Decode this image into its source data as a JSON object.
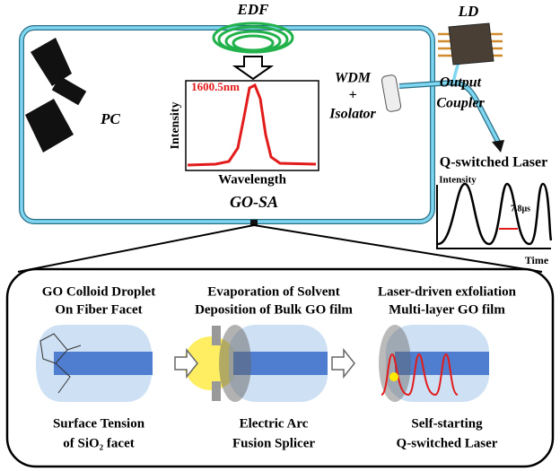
{
  "setup": {
    "edf": "EDF",
    "ld": "LD",
    "pc": "PC",
    "wdm": [
      "WDM",
      "+",
      "Isolator"
    ],
    "output_coupler": [
      "Output",
      "Coupler"
    ],
    "go_sa": "GO-SA"
  },
  "spectrum_inset": {
    "peak_label": "1600.5nm",
    "y_label": "Intensity",
    "x_label": "Wavelength"
  },
  "q_switch_plot": {
    "title": "Q-switched Laser",
    "y_label": "Intensity",
    "period_label": "7.8μs",
    "x_label": "Time"
  },
  "process": [
    {
      "top": [
        "GO Colloid Droplet",
        "On Fiber Facet"
      ],
      "bottom": [
        "Surface Tension",
        "of SiO₂ facet"
      ]
    },
    {
      "top": [
        "Evaporation of Solvent",
        "Deposition of Bulk GO film"
      ],
      "bottom": [
        "Electric Arc",
        "Fusion Splicer"
      ]
    },
    {
      "top": [
        "Laser-driven exfoliation",
        "Multi-layer GO film"
      ],
      "bottom": [
        "Self-starting",
        "Q-switched Laser"
      ]
    }
  ]
}
